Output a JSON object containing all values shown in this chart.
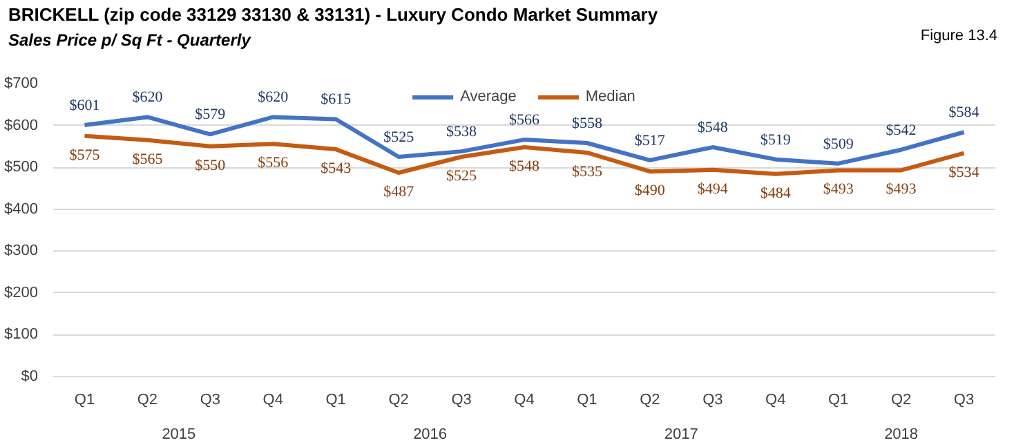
{
  "chart_data": {
    "type": "line",
    "title": "BRICKELL (zip code 33129 33130 & 33131) - Luxury Condo Market Summary",
    "subtitle": "Sales Price p/ Sq Ft - Quarterly",
    "annotations": [
      "Figure 13.4",
      "2015",
      "2016",
      "2017",
      "2018"
    ],
    "categories": [
      "Q1",
      "Q2",
      "Q3",
      "Q4",
      "Q1",
      "Q2",
      "Q3",
      "Q4",
      "Q1",
      "Q2",
      "Q3",
      "Q4",
      "Q1",
      "Q2",
      "Q3"
    ],
    "series": [
      {
        "name": "Average",
        "color": "#4472c4",
        "values": [
          601,
          620,
          579,
          620,
          615,
          525,
          538,
          566,
          558,
          517,
          548,
          519,
          509,
          542,
          584
        ],
        "value_labels": [
          "$601",
          "$620",
          "$579",
          "$620",
          "$615",
          "$525",
          "$538",
          "$566",
          "$558",
          "$517",
          "$548",
          "$519",
          "$509",
          "$542",
          "$584"
        ]
      },
      {
        "name": "Median",
        "color": "#c55a11",
        "values": [
          575,
          565,
          550,
          556,
          543,
          487,
          525,
          548,
          535,
          490,
          494,
          484,
          493,
          493,
          534
        ],
        "value_labels": [
          "$575",
          "$565",
          "$550",
          "$556",
          "$543",
          "$487",
          "$525",
          "$548",
          "$535",
          "$490",
          "$494",
          "$484",
          "$493",
          "$493",
          "$534"
        ]
      }
    ],
    "ylim": [
      0,
      700
    ],
    "yticks": [
      {
        "value": 0,
        "label": "$0"
      },
      {
        "value": 100,
        "label": "$100"
      },
      {
        "value": 200,
        "label": "$200"
      },
      {
        "value": 300,
        "label": "$300"
      },
      {
        "value": 400,
        "label": "$400"
      },
      {
        "value": 500,
        "label": "$500"
      },
      {
        "value": 600,
        "label": "$600"
      },
      {
        "value": 700,
        "label": "$700"
      }
    ],
    "grid": "y",
    "legend": "top",
    "marker": "none",
    "line_style": "solid"
  }
}
